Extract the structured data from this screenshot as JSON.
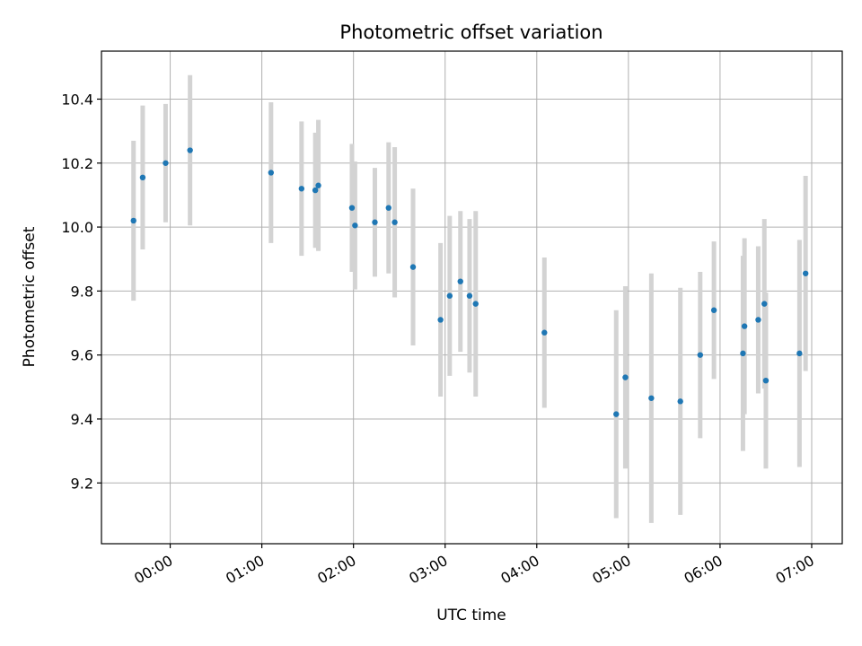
{
  "chart_data": {
    "type": "scatter",
    "title": "Photometric offset variation",
    "xlabel": "UTC time",
    "ylabel": "Photometric offset",
    "xlim": [
      "23:15",
      "07:20"
    ],
    "ylim": [
      9.01,
      10.55
    ],
    "x_ticks": [
      "00:00",
      "01:00",
      "02:00",
      "03:00",
      "04:00",
      "05:00",
      "06:00",
      "07:00"
    ],
    "y_ticks": [
      "9.2",
      "9.4",
      "9.6",
      "9.8",
      "10.0",
      "10.2",
      "10.4"
    ],
    "grid": true,
    "errorbar_color": "#d3d3d3",
    "marker_color": "#1f77b4",
    "points": [
      {
        "t": "23:36",
        "y": 10.02,
        "err": 0.25
      },
      {
        "t": "23:42",
        "y": 10.155,
        "err": 0.225
      },
      {
        "t": "23:57",
        "y": 10.2,
        "err": 0.185
      },
      {
        "t": "00:13",
        "y": 10.24,
        "err": 0.235
      },
      {
        "t": "01:06",
        "y": 10.17,
        "err": 0.22
      },
      {
        "t": "01:26",
        "y": 10.12,
        "err": 0.21
      },
      {
        "t": "01:35",
        "y": 10.115,
        "err": 0.18
      },
      {
        "t": "01:37",
        "y": 10.13,
        "err": 0.205
      },
      {
        "t": "01:59",
        "y": 10.06,
        "err": 0.2
      },
      {
        "t": "02:01",
        "y": 10.005,
        "err": 0.2
      },
      {
        "t": "02:14",
        "y": 10.015,
        "err": 0.17
      },
      {
        "t": "02:23",
        "y": 10.06,
        "err": 0.205
      },
      {
        "t": "02:27",
        "y": 10.015,
        "err": 0.235
      },
      {
        "t": "02:39",
        "y": 9.875,
        "err": 0.245
      },
      {
        "t": "02:57",
        "y": 9.71,
        "err": 0.24
      },
      {
        "t": "03:03",
        "y": 9.785,
        "err": 0.25
      },
      {
        "t": "03:10",
        "y": 9.83,
        "err": 0.22
      },
      {
        "t": "03:16",
        "y": 9.785,
        "err": 0.24
      },
      {
        "t": "03:20",
        "y": 9.76,
        "err": 0.29
      },
      {
        "t": "04:05",
        "y": 9.67,
        "err": 0.235
      },
      {
        "t": "04:52",
        "y": 9.415,
        "err": 0.325
      },
      {
        "t": "04:58",
        "y": 9.53,
        "err": 0.285
      },
      {
        "t": "05:15",
        "y": 9.465,
        "err": 0.39
      },
      {
        "t": "05:34",
        "y": 9.455,
        "err": 0.355
      },
      {
        "t": "05:47",
        "y": 9.6,
        "err": 0.26
      },
      {
        "t": "05:56",
        "y": 9.74,
        "err": 0.215
      },
      {
        "t": "06:15",
        "y": 9.605,
        "err": 0.305
      },
      {
        "t": "06:16",
        "y": 9.69,
        "err": 0.275
      },
      {
        "t": "06:25",
        "y": 9.71,
        "err": 0.23
      },
      {
        "t": "06:29",
        "y": 9.76,
        "err": 0.265
      },
      {
        "t": "06:30",
        "y": 9.52,
        "err": 0.275
      },
      {
        "t": "06:52",
        "y": 9.605,
        "err": 0.355
      },
      {
        "t": "06:56",
        "y": 9.855,
        "err": 0.305
      }
    ]
  }
}
